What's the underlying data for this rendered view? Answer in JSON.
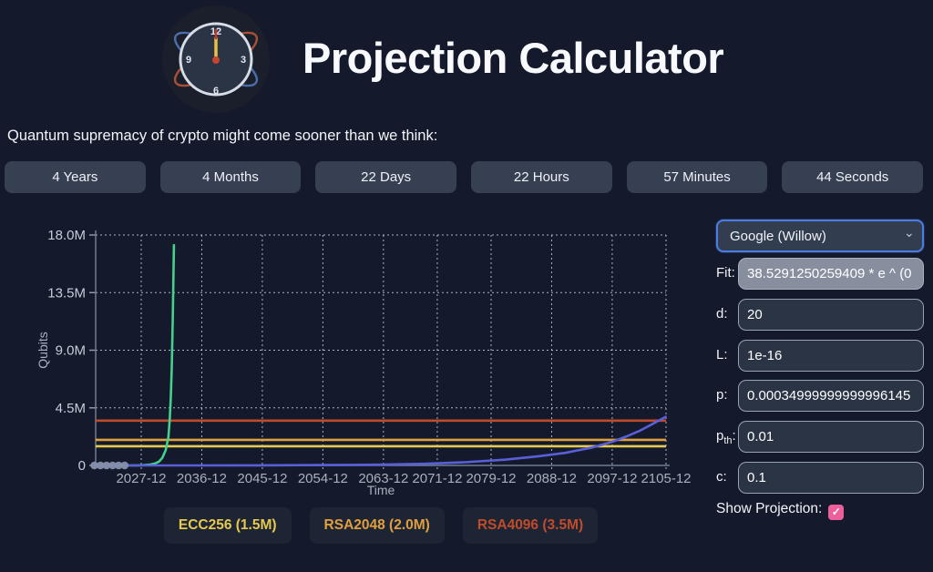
{
  "header": {
    "title": "Projection Calculator"
  },
  "subtitle": "Quantum supremacy of crypto might come sooner than we think:",
  "countdown": {
    "buttons": [
      {
        "id": "years",
        "label": "4 Years"
      },
      {
        "id": "months",
        "label": "4 Months"
      },
      {
        "id": "days",
        "label": "22 Days"
      },
      {
        "id": "hours",
        "label": "22 Hours"
      },
      {
        "id": "minutes",
        "label": "57 Minutes"
      },
      {
        "id": "seconds",
        "label": "44 Seconds"
      }
    ]
  },
  "chart_data": {
    "type": "line",
    "title": "",
    "xlabel": "Time",
    "ylabel": "Qubits",
    "grid": true,
    "ylim_millions": [
      0,
      18
    ],
    "y_ticks": [
      {
        "label": "0",
        "value": 0
      },
      {
        "label": "4.5M",
        "value": 4.5
      },
      {
        "label": "9.0M",
        "value": 9
      },
      {
        "label": "13.5M",
        "value": 13.5
      },
      {
        "label": "18.0M",
        "value": 18
      }
    ],
    "x_tick_labels": [
      "2027-12",
      "2036-12",
      "2045-12",
      "2054-12",
      "2063-12",
      "2071-12",
      "2079-12",
      "2088-12",
      "2097-12",
      "2105-12"
    ],
    "series": [
      {
        "name": "exponential-fit",
        "type": "line",
        "color": "#45d08c",
        "points": [
          [
            2026,
            0.003
          ],
          [
            2027.5,
            0.01
          ],
          [
            2028.5,
            0.03
          ],
          [
            2029.3,
            0.07
          ],
          [
            2030,
            0.15
          ],
          [
            2030.6,
            0.3
          ],
          [
            2031.1,
            0.6
          ],
          [
            2031.6,
            1.2
          ],
          [
            2032,
            2.2
          ],
          [
            2032.2,
            3.6
          ],
          [
            2032.35,
            5.2
          ],
          [
            2032.5,
            7.6
          ],
          [
            2032.65,
            11.4
          ],
          [
            2032.82,
            17.2
          ]
        ]
      },
      {
        "name": "projection",
        "type": "line",
        "color": "#5a5fd8",
        "points": [
          [
            2021.0,
            0.0001
          ],
          [
            2035,
            0.002
          ],
          [
            2045,
            0.008
          ],
          [
            2055,
            0.025
          ],
          [
            2063,
            0.06
          ],
          [
            2070,
            0.13
          ],
          [
            2076,
            0.25
          ],
          [
            2082,
            0.45
          ],
          [
            2087,
            0.72
          ],
          [
            2091,
            0.98
          ],
          [
            2095,
            1.4
          ],
          [
            2098,
            1.85
          ],
          [
            2100,
            2.25
          ],
          [
            2102,
            2.7
          ],
          [
            2104,
            3.25
          ],
          [
            2105.9,
            3.8
          ]
        ]
      },
      {
        "name": "historical-qubit-counts",
        "type": "scatter",
        "color": "#8690ac",
        "points": [
          [
            2021.0,
            0.0001
          ],
          [
            2021.9,
            0.0001
          ],
          [
            2022.8,
            0.0001
          ],
          [
            2023.7,
            0.0001
          ],
          [
            2024.6,
            0.0001
          ],
          [
            2025.5,
            0.0001
          ]
        ]
      }
    ],
    "thresholds": [
      {
        "name": "ECC256",
        "value_millions": 1.5,
        "color": "#e6c94f"
      },
      {
        "name": "RSA2048",
        "value_millions": 2.0,
        "color": "#e09f3e"
      },
      {
        "name": "RSA4096",
        "value_millions": 3.5,
        "color": "#c04b2b"
      }
    ],
    "legend_position": "bottom"
  },
  "legend": {
    "items": [
      {
        "id": "ecc256",
        "label": "ECC256 (1.5M)",
        "color": "#e6c94f"
      },
      {
        "id": "rsa2048",
        "label": "RSA2048 (2.0M)",
        "color": "#e09f3e"
      },
      {
        "id": "rsa4096",
        "label": "RSA4096 (3.5M)",
        "color": "#c04b2b"
      }
    ]
  },
  "controls": {
    "machine_select": {
      "value": "Google (Willow)"
    },
    "fields": [
      {
        "id": "fit",
        "label": "Fit",
        "sub": "",
        "suffix": ":",
        "value": "38.5291250259409 * e ^ (0",
        "readonly": true
      },
      {
        "id": "d",
        "label": "d",
        "sub": "",
        "suffix": ":",
        "value": "20",
        "readonly": false
      },
      {
        "id": "L",
        "label": "L",
        "sub": "",
        "suffix": ":",
        "value": "1e-16",
        "readonly": false
      },
      {
        "id": "p",
        "label": "p",
        "sub": "",
        "suffix": ":",
        "value": "0.00034999999999996145",
        "readonly": false
      },
      {
        "id": "pth",
        "label": "p",
        "sub": "th",
        "suffix": ":",
        "value": "0.01",
        "readonly": false
      },
      {
        "id": "c",
        "label": "c",
        "sub": "",
        "suffix": ":",
        "value": "0.1",
        "readonly": false
      }
    ],
    "show_projection": {
      "label": "Show Projection:",
      "checked": true
    }
  },
  "colors": {
    "select_focus_blue": "#4b7de0",
    "checkbox_pink": "#ed5f9b",
    "fit_green": "#45d08c",
    "projection_purple": "#5a5fd8",
    "scatter_gray": "#8690ac"
  }
}
